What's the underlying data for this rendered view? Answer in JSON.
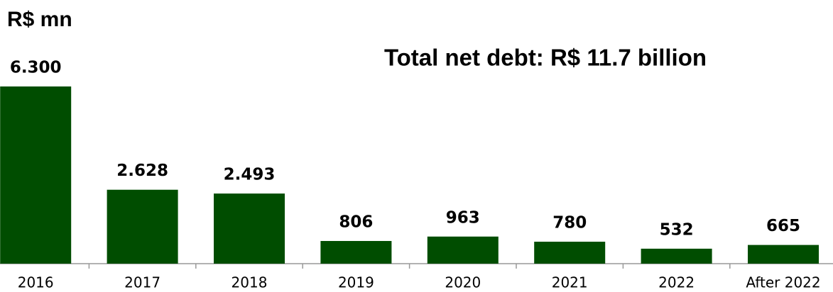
{
  "chart_data": {
    "type": "bar",
    "title": "R$ mn",
    "annotation": "Total net debt: R$ 11.7 billion",
    "categories": [
      "2016",
      "2017",
      "2018",
      "2019",
      "2020",
      "2021",
      "2022",
      "After 2022"
    ],
    "values": [
      6300,
      2628,
      2493,
      806,
      963,
      780,
      532,
      665
    ],
    "value_labels": [
      "6.300",
      "2.628",
      "2.493",
      "806",
      "963",
      "780",
      "532",
      "665"
    ],
    "color": "#004d00"
  }
}
